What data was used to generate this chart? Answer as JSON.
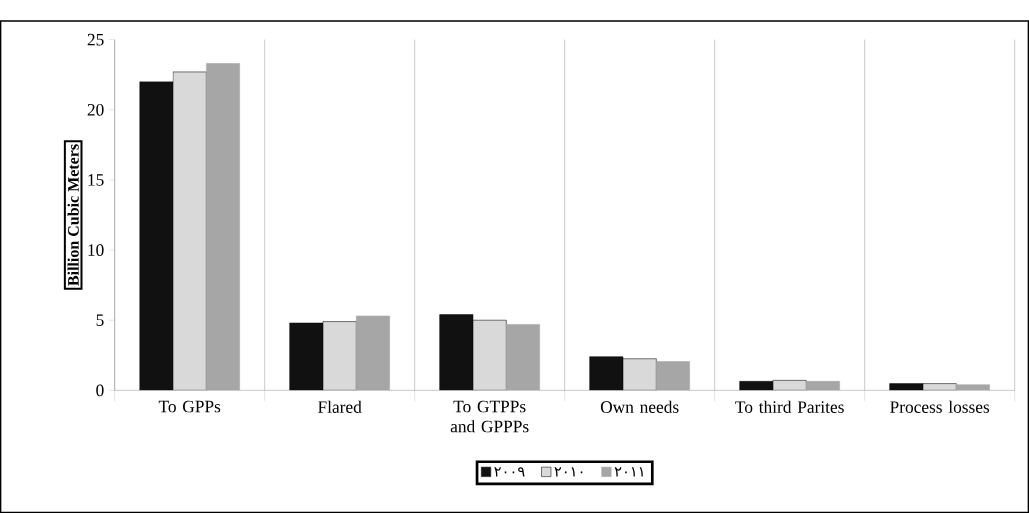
{
  "chart_data": {
    "type": "bar",
    "ylabel": "Billion Cubic Meters",
    "categories": [
      "To GPPs",
      "Flared",
      "To GTPPs and GPPPs",
      "Own needs",
      "To third Parites",
      "Process losses"
    ],
    "series": [
      {
        "name": "٢٠٠٩",
        "color": "#111111",
        "values": [
          22.0,
          4.8,
          5.4,
          2.4,
          0.64,
          0.48
        ]
      },
      {
        "name": "٢٠١٠",
        "color": "#d9d9d9",
        "values": [
          22.7,
          4.9,
          5.0,
          2.25,
          0.71,
          0.48
        ]
      },
      {
        "name": "٢٠١١",
        "color": "#a6a6a6",
        "values": [
          23.3,
          5.3,
          4.7,
          2.05,
          0.64,
          0.4
        ]
      }
    ],
    "ylim": [
      0,
      25
    ],
    "yticks": [
      0,
      5,
      10,
      15,
      20,
      25
    ],
    "grid": "x",
    "legend": "bottom"
  }
}
